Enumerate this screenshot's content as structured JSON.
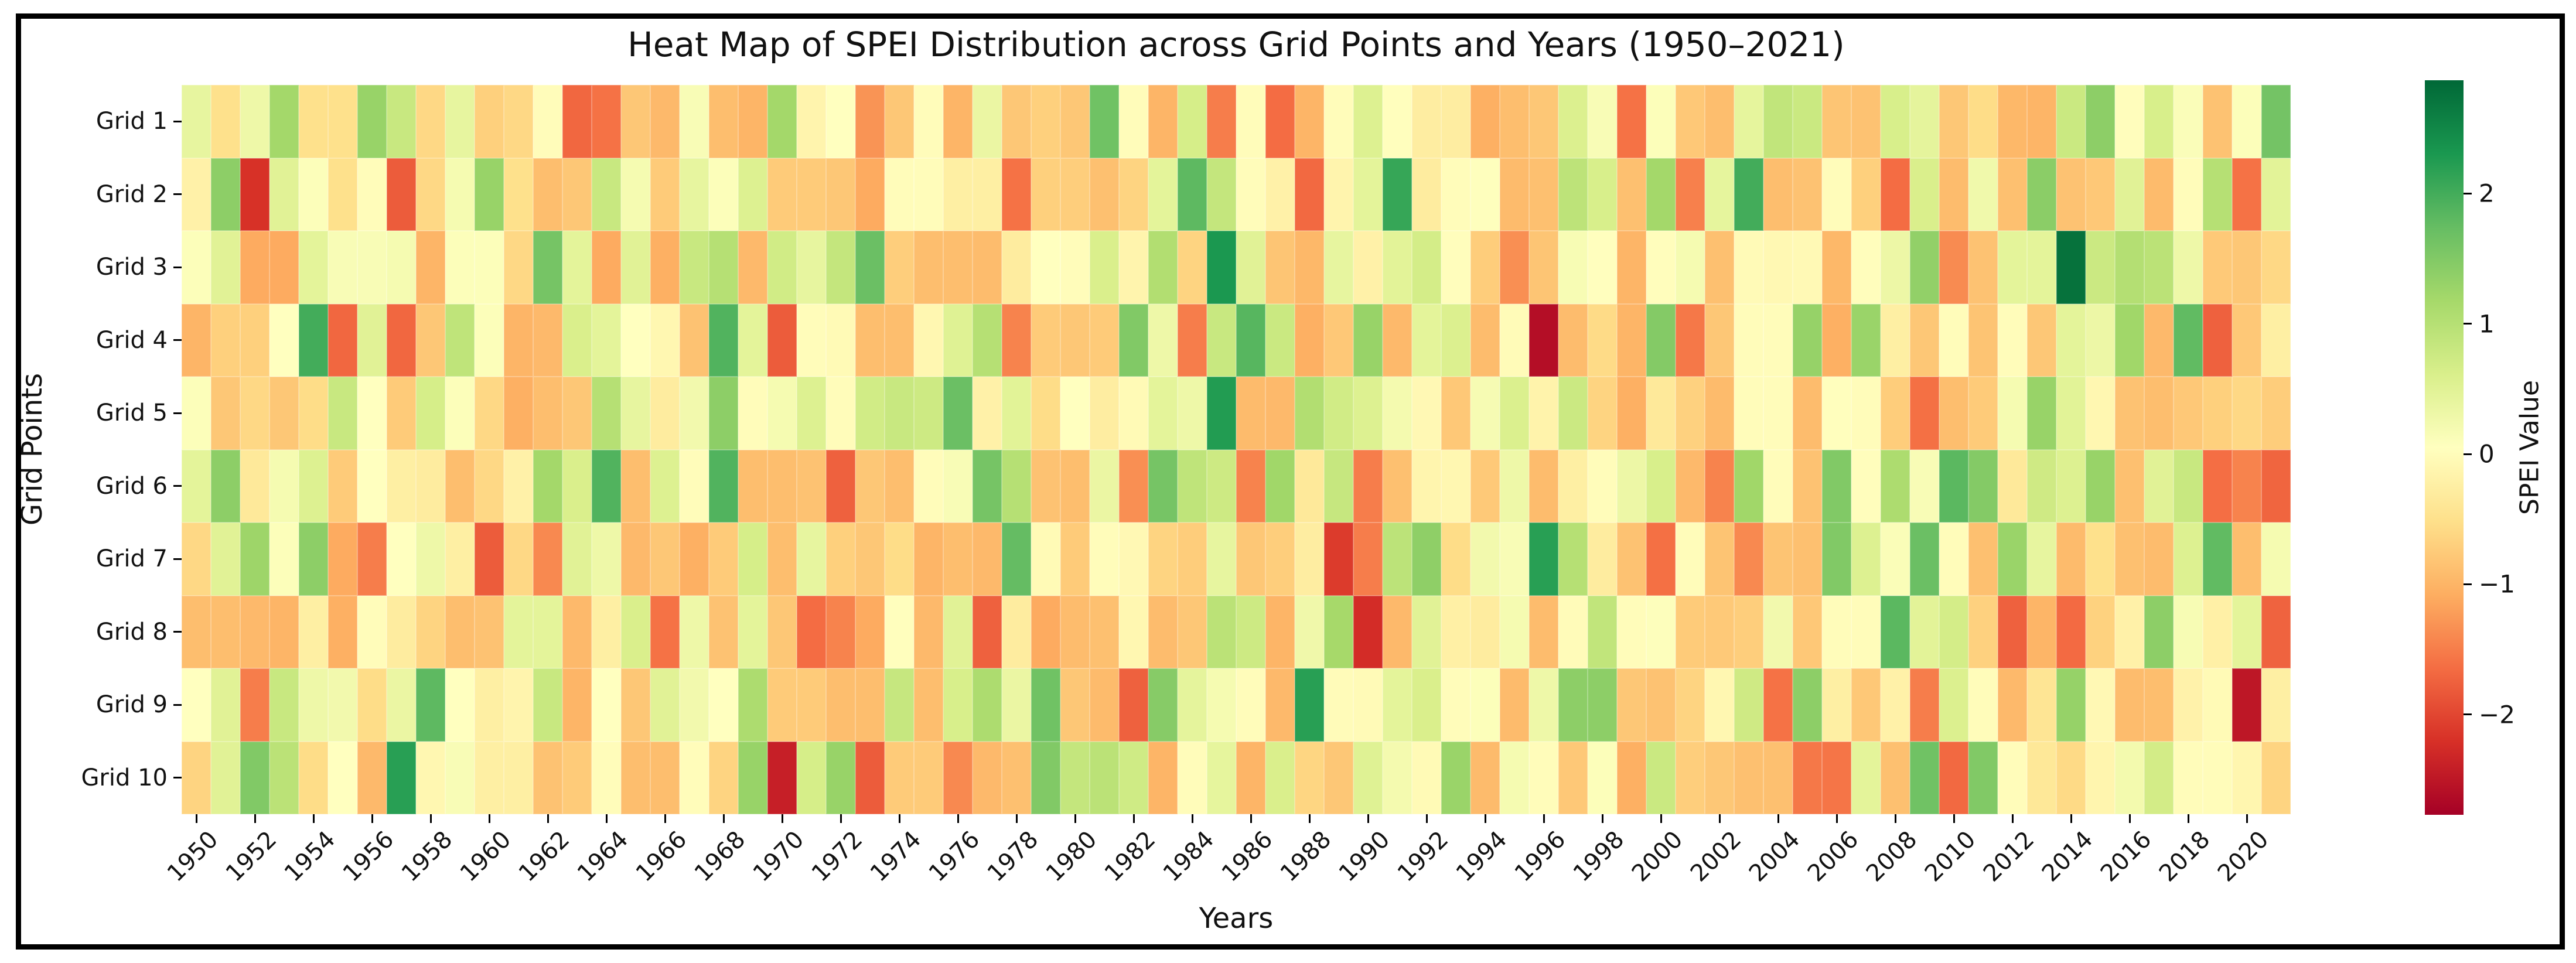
{
  "title": "Heat Map of SPEI Distribution across Grid Points and Years (1950–2021)",
  "axes": {
    "xlabel": "Years",
    "ylabel": "Grid Points"
  },
  "colorbar": {
    "label": "SPEI Value",
    "tick_labels": [
      "2",
      "1",
      "0",
      "−1",
      "−2"
    ],
    "tick_values": [
      2,
      1,
      0,
      -1,
      -2
    ]
  },
  "chart_data": {
    "type": "heatmap",
    "title": "Heat Map of SPEI Distribution across Grid Points and Years (1950–2021)",
    "xlabel": "Years",
    "ylabel": "Grid Points",
    "legend_position": "right-colorbar",
    "grid": false,
    "x": [
      1950,
      1951,
      1952,
      1953,
      1954,
      1955,
      1956,
      1957,
      1958,
      1959,
      1960,
      1961,
      1962,
      1963,
      1964,
      1965,
      1966,
      1967,
      1968,
      1969,
      1970,
      1971,
      1972,
      1973,
      1974,
      1975,
      1976,
      1977,
      1978,
      1979,
      1980,
      1981,
      1982,
      1983,
      1984,
      1985,
      1986,
      1987,
      1988,
      1989,
      1990,
      1991,
      1992,
      1993,
      1994,
      1995,
      1996,
      1997,
      1998,
      1999,
      2000,
      2001,
      2002,
      2003,
      2004,
      2005,
      2006,
      2007,
      2008,
      2009,
      2010,
      2011,
      2012,
      2013,
      2014,
      2015,
      2016,
      2017,
      2018,
      2019,
      2020,
      2021
    ],
    "x_tick_labels": [
      "1950",
      "1952",
      "1954",
      "1956",
      "1958",
      "1960",
      "1962",
      "1964",
      "1966",
      "1968",
      "1970",
      "1972",
      "1974",
      "1976",
      "1978",
      "1980",
      "1982",
      "1984",
      "1986",
      "1988",
      "1990",
      "1992",
      "1994",
      "1996",
      "1998",
      "2000",
      "2002",
      "2004",
      "2006",
      "2008",
      "2010",
      "2012",
      "2014",
      "2016",
      "2018",
      "2020"
    ],
    "rows": [
      "Grid 1",
      "Grid 2",
      "Grid 3",
      "Grid 4",
      "Grid 5",
      "Grid 6",
      "Grid 7",
      "Grid 8",
      "Grid 9",
      "Grid 10"
    ],
    "vmin": -2.77,
    "vmax": 2.87,
    "colormap": {
      "name": "RdYlGn",
      "stops": [
        "#a50026",
        "#d73027",
        "#f46d43",
        "#fdae61",
        "#fee08b",
        "#ffffbf",
        "#d9ef8b",
        "#a6d96a",
        "#66bd63",
        "#1a9850",
        "#006837"
      ]
    },
    "values": [
      [
        0.4,
        -0.5,
        0.3,
        1.2,
        -0.5,
        -0.5,
        1.3,
        0.8,
        -0.6,
        0.4,
        -0.7,
        -0.6,
        0.0,
        -1.7,
        -1.6,
        -0.8,
        -0.95,
        0.15,
        -0.9,
        -1.0,
        1.2,
        -0.15,
        0.05,
        -1.3,
        -0.8,
        0.0,
        -1.0,
        0.35,
        -0.8,
        -0.7,
        -0.8,
        1.65,
        0.0,
        -1.0,
        0.65,
        -1.5,
        0.0,
        -1.65,
        -1.0,
        0.0,
        0.55,
        0.03,
        -0.28,
        -0.27,
        -1.05,
        -0.9,
        -0.8,
        0.57,
        0.15,
        -1.6,
        0.1,
        -0.78,
        -0.9,
        0.42,
        0.88,
        0.78,
        -0.82,
        -0.85,
        0.62,
        0.43,
        -0.8,
        -0.55,
        -0.97,
        -1.0,
        0.78,
        1.4,
        0.02,
        0.62,
        0.12,
        -0.85,
        0.1,
        1.62
      ],
      [
        -0.2,
        1.4,
        -2.2,
        0.5,
        0.1,
        -0.5,
        0.0,
        -1.8,
        -0.6,
        0.2,
        1.3,
        -0.5,
        -0.9,
        -0.8,
        0.8,
        0.2,
        -0.75,
        0.4,
        0.1,
        0.55,
        -0.75,
        -0.75,
        -0.8,
        -1.1,
        0.0,
        0.0,
        -0.25,
        -0.25,
        -1.6,
        -0.7,
        -0.72,
        -0.88,
        -0.65,
        0.45,
        1.8,
        0.85,
        0.0,
        -0.2,
        -1.68,
        -0.15,
        0.45,
        2.1,
        -0.3,
        0.0,
        0.07,
        -0.93,
        -0.88,
        0.92,
        0.62,
        -0.88,
        1.2,
        -1.48,
        0.42,
        2.0,
        -0.9,
        -0.85,
        0.0,
        -0.7,
        -1.65,
        0.6,
        -0.92,
        0.27,
        -0.87,
        1.42,
        -0.85,
        -0.78,
        0.5,
        -0.93,
        0.0,
        1.0,
        -1.6,
        0.47
      ],
      [
        0.1,
        0.5,
        -1.1,
        -1.1,
        0.45,
        0.15,
        0.15,
        0.2,
        -1.0,
        0.1,
        0.1,
        -0.6,
        1.6,
        0.45,
        -1.1,
        0.5,
        -1.05,
        0.8,
        1.0,
        -0.95,
        0.7,
        0.4,
        0.85,
        1.7,
        -0.72,
        -0.9,
        -0.9,
        -0.92,
        -0.3,
        0.05,
        0.0,
        0.6,
        -0.15,
        1.05,
        -0.65,
        2.3,
        0.5,
        -0.82,
        -0.97,
        0.4,
        -0.2,
        0.47,
        0.67,
        0.02,
        -0.73,
        -1.35,
        -0.82,
        0.17,
        0.04,
        -1.0,
        0.02,
        0.2,
        -0.88,
        -0.04,
        -0.08,
        -0.06,
        -0.97,
        0.02,
        0.32,
        1.35,
        -1.38,
        -0.85,
        0.45,
        0.45,
        2.75,
        0.77,
        1.02,
        0.95,
        0.3,
        -0.77,
        -0.8,
        -0.6
      ],
      [
        -1.0,
        -0.7,
        -0.7,
        0.05,
        2.0,
        -1.7,
        0.5,
        -1.7,
        -0.8,
        0.9,
        0.1,
        -1.0,
        -0.95,
        0.6,
        0.45,
        0.05,
        -0.1,
        -0.85,
        1.9,
        0.45,
        -1.8,
        0.0,
        -0.05,
        -0.9,
        -0.9,
        -0.1,
        0.52,
        1.0,
        -1.45,
        -0.75,
        -0.8,
        -0.75,
        1.5,
        0.3,
        -1.5,
        0.8,
        1.85,
        0.78,
        -1.05,
        -0.78,
        1.3,
        -0.95,
        0.45,
        0.57,
        -0.92,
        -0.03,
        -2.6,
        -0.92,
        -0.57,
        -1.0,
        1.48,
        -1.55,
        -0.8,
        0.0,
        0.0,
        1.32,
        -1.05,
        1.28,
        -0.25,
        -0.8,
        0.0,
        -0.83,
        0.0,
        -0.8,
        0.45,
        0.32,
        1.22,
        -0.95,
        1.78,
        -1.75,
        -0.78,
        -0.25
      ],
      [
        0.1,
        -0.8,
        -0.6,
        -0.8,
        -0.55,
        0.8,
        0.05,
        -0.75,
        0.65,
        0.1,
        -0.6,
        -1.05,
        -0.9,
        -0.8,
        1.0,
        0.4,
        -0.3,
        0.25,
        1.4,
        0.0,
        0.2,
        0.55,
        0.0,
        0.7,
        0.8,
        0.75,
        1.7,
        -0.2,
        0.48,
        -0.55,
        0.05,
        -0.28,
        -0.05,
        0.45,
        0.3,
        2.25,
        -0.93,
        -0.95,
        1.05,
        0.7,
        0.55,
        0.22,
        -0.07,
        -0.78,
        0.18,
        0.58,
        -0.17,
        0.77,
        -0.65,
        -1.05,
        -0.35,
        -0.68,
        -0.93,
        0.0,
        0.0,
        -0.92,
        0.03,
        0.0,
        -0.73,
        -1.62,
        -0.9,
        -0.75,
        0.2,
        1.3,
        0.48,
        -0.1,
        -0.85,
        -0.9,
        -0.78,
        -0.7,
        -0.6,
        -0.73
      ],
      [
        0.45,
        1.4,
        -0.35,
        0.2,
        0.55,
        -0.75,
        0.05,
        -0.25,
        -0.3,
        -0.9,
        -0.6,
        -0.2,
        1.2,
        0.6,
        1.9,
        -0.9,
        0.55,
        0.0,
        1.9,
        -0.9,
        -0.9,
        -0.85,
        -1.75,
        -0.8,
        -0.9,
        0.0,
        0.15,
        1.6,
        1.0,
        -0.85,
        -0.9,
        0.35,
        -1.35,
        1.6,
        0.9,
        0.75,
        -1.45,
        1.22,
        -0.35,
        0.82,
        -1.5,
        -0.88,
        -0.13,
        -0.1,
        -0.77,
        0.3,
        -0.92,
        -0.25,
        0.0,
        0.32,
        0.62,
        -0.95,
        -1.45,
        1.22,
        0.0,
        -0.85,
        1.5,
        0.02,
        1.1,
        0.15,
        1.82,
        1.48,
        -0.35,
        0.73,
        0.55,
        1.3,
        -0.87,
        0.5,
        0.8,
        -1.63,
        -1.45,
        -1.72
      ],
      [
        -0.6,
        0.5,
        1.25,
        0.1,
        1.4,
        -1.1,
        -1.5,
        0.05,
        0.3,
        -0.25,
        -1.8,
        -0.6,
        -1.4,
        0.5,
        0.3,
        -0.95,
        -0.8,
        -1.05,
        -0.75,
        0.65,
        -0.9,
        0.4,
        -0.7,
        -0.8,
        -0.55,
        -1.0,
        -0.9,
        -0.95,
        1.75,
        -0.05,
        -0.75,
        0.0,
        -0.07,
        -0.65,
        -0.73,
        0.4,
        -0.8,
        -0.72,
        -0.27,
        -2.1,
        -1.5,
        0.93,
        1.38,
        -0.55,
        0.25,
        0.15,
        2.2,
        1.0,
        -0.3,
        -0.85,
        -1.62,
        0.0,
        -0.83,
        -1.4,
        -0.83,
        -0.88,
        1.5,
        0.55,
        0.13,
        1.7,
        0.0,
        -0.88,
        1.28,
        0.4,
        -0.93,
        -0.5,
        -0.88,
        -0.92,
        0.55,
        1.78,
        -0.9,
        0.2
      ],
      [
        -0.9,
        -0.9,
        -0.95,
        -1.0,
        -0.25,
        -1.05,
        0.0,
        -0.3,
        -0.65,
        -0.9,
        -0.85,
        0.45,
        0.45,
        -0.95,
        -0.25,
        0.6,
        -1.6,
        0.3,
        -0.85,
        0.45,
        -0.8,
        -1.65,
        -1.45,
        -1.1,
        0.03,
        -0.95,
        0.5,
        -1.75,
        -0.3,
        -1.1,
        -0.92,
        -0.88,
        -0.1,
        -0.92,
        -0.8,
        0.95,
        0.75,
        -1.0,
        0.28,
        1.17,
        -2.25,
        -0.95,
        0.5,
        -0.23,
        -0.3,
        0.2,
        -0.92,
        -0.02,
        0.88,
        0.0,
        0.08,
        -0.75,
        -0.77,
        -0.72,
        0.25,
        -0.78,
        0.0,
        0.0,
        1.82,
        0.47,
        0.67,
        -0.68,
        -1.75,
        -1.0,
        -1.67,
        -0.67,
        -0.2,
        1.4,
        0.17,
        -0.22,
        0.45,
        -1.73
      ],
      [
        0.05,
        0.5,
        -1.5,
        0.8,
        0.3,
        0.25,
        -0.55,
        0.35,
        1.8,
        0.05,
        -0.25,
        -0.15,
        0.8,
        -1.0,
        0.05,
        -0.8,
        0.5,
        0.25,
        0.05,
        1.1,
        -0.75,
        -0.75,
        -0.9,
        -0.9,
        0.82,
        -0.9,
        0.62,
        1.1,
        0.35,
        1.65,
        -0.8,
        -0.93,
        -1.75,
        1.45,
        0.43,
        0.2,
        0.0,
        -0.95,
        2.2,
        -0.02,
        -0.04,
        0.45,
        0.6,
        0.0,
        0.1,
        -0.93,
        0.3,
        1.4,
        1.4,
        -0.8,
        -0.85,
        -0.65,
        -0.1,
        0.73,
        -1.6,
        1.4,
        -0.25,
        -0.78,
        -0.2,
        -1.5,
        0.57,
        0.0,
        -0.95,
        -0.42,
        1.32,
        -0.07,
        -0.92,
        -0.9,
        -0.18,
        -0.05,
        -2.5,
        -0.25
      ],
      [
        -0.65,
        0.5,
        1.5,
        0.95,
        -0.55,
        0.05,
        -0.95,
        2.2,
        -0.1,
        0.15,
        -0.25,
        -0.25,
        -0.85,
        -0.75,
        0.0,
        -0.9,
        -0.9,
        0.0,
        -0.65,
        1.3,
        -2.4,
        0.65,
        1.3,
        -1.8,
        -0.75,
        -0.75,
        -1.4,
        -0.95,
        -0.87,
        1.5,
        0.85,
        0.95,
        0.72,
        -1.0,
        0.0,
        0.42,
        -1.0,
        0.6,
        -0.63,
        -0.8,
        0.52,
        0.22,
        -0.05,
        1.28,
        -0.93,
        0.2,
        0.0,
        -0.78,
        0.1,
        -1.05,
        0.78,
        -0.72,
        -0.8,
        -0.87,
        -0.88,
        -1.55,
        -1.57,
        0.45,
        -0.88,
        1.65,
        -1.68,
        1.5,
        0.0,
        -0.37,
        -0.58,
        -0.13,
        0.23,
        0.68,
        0.0,
        0.0,
        -0.12,
        -0.65
      ]
    ]
  }
}
